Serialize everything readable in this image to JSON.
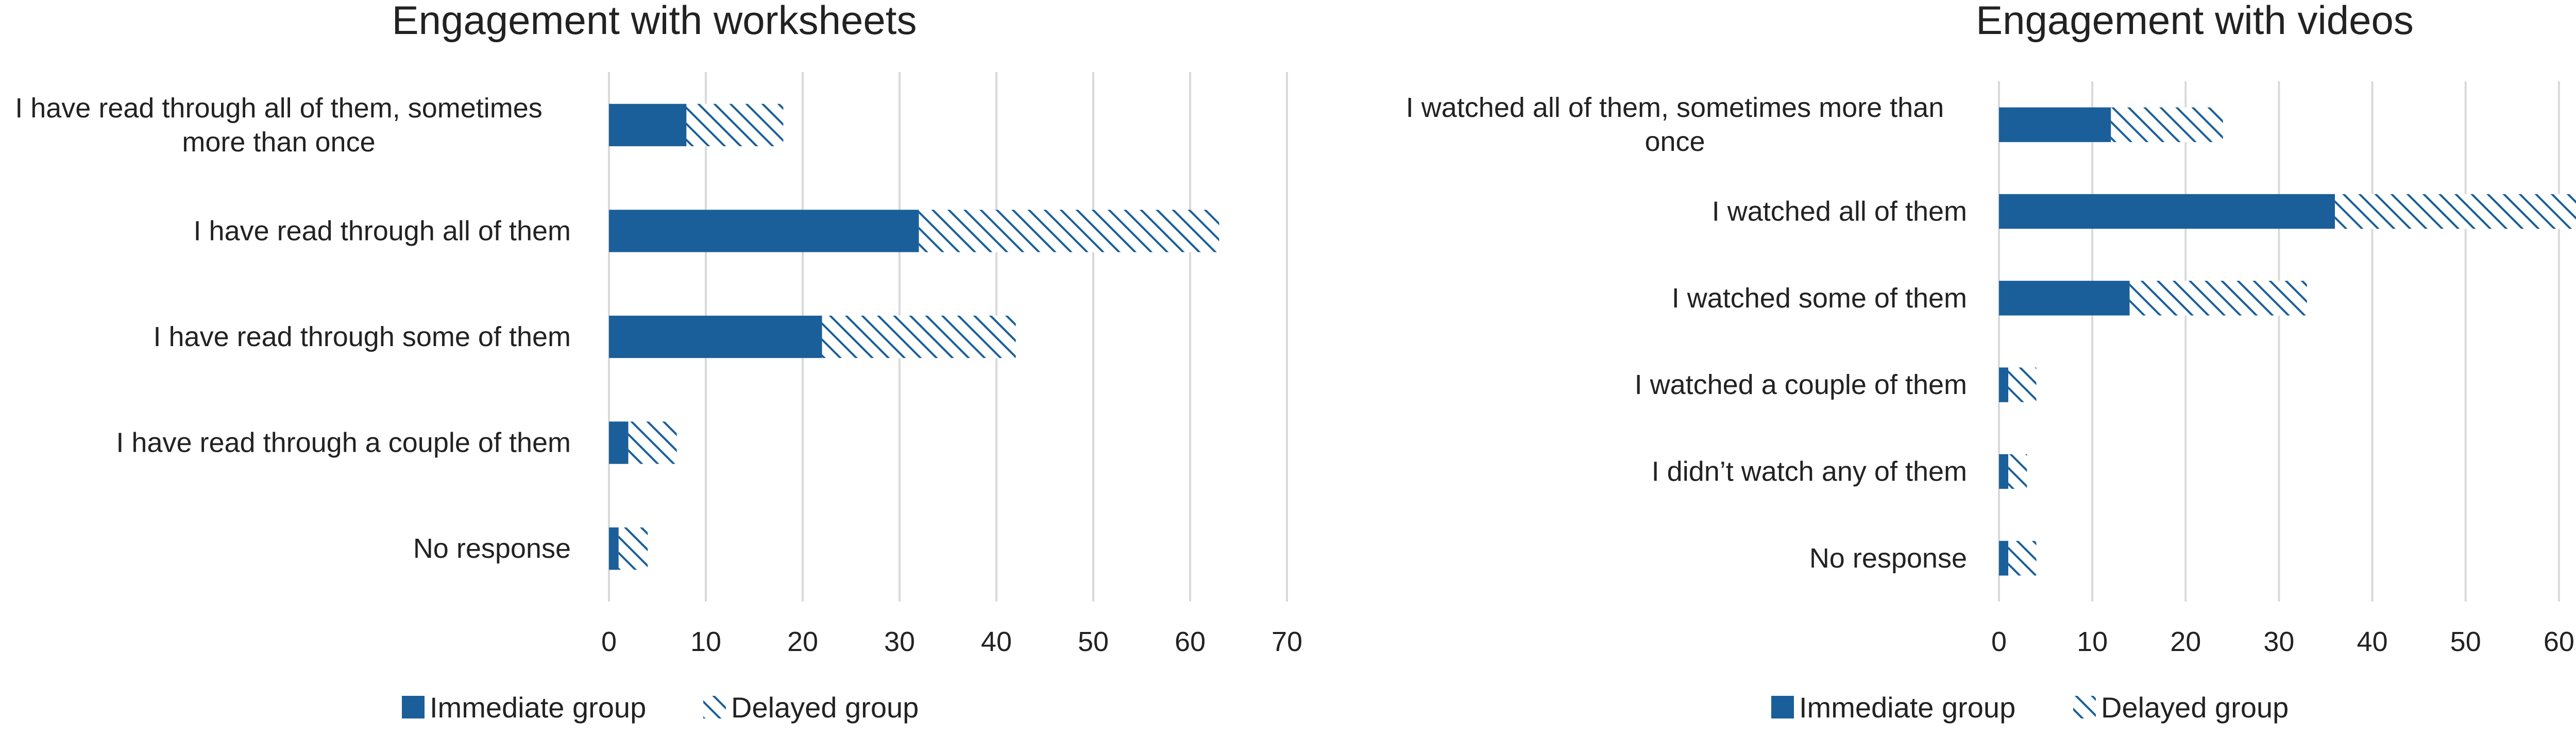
{
  "chart_data": [
    {
      "type": "bar",
      "orientation": "horizontal",
      "stacked": true,
      "title": "Engagement with worksheets",
      "categories": [
        "I have read through all of them, sometimes more than once",
        "I have read through all of them",
        "I have read through some of them",
        "I have read through a couple of them",
        "No response"
      ],
      "series": [
        {
          "name": "Immediate group",
          "values": [
            8,
            32,
            22,
            2,
            1
          ]
        },
        {
          "name": "Delayed group",
          "values": [
            10,
            31,
            20,
            5,
            3
          ]
        }
      ],
      "xlim": [
        0,
        70
      ],
      "xticks": [
        0,
        10,
        20,
        30,
        40,
        50,
        60,
        70
      ],
      "grid": true,
      "legend": "bottom"
    },
    {
      "type": "bar",
      "orientation": "horizontal",
      "stacked": true,
      "title": "Engagement with videos",
      "categories": [
        "I watched all of them, sometimes more than once",
        "I watched all of them",
        "I watched some of them",
        "I watched a couple of them",
        "I didn't watch any of them",
        "No response"
      ],
      "series": [
        {
          "name": "Immediate group",
          "values": [
            12,
            36,
            14,
            1,
            1,
            1
          ]
        },
        {
          "name": "Delayed group",
          "values": [
            12,
            30,
            19,
            3,
            2,
            3
          ]
        }
      ],
      "xlim": [
        0,
        70
      ],
      "xticks": [
        0,
        10,
        20,
        30,
        40,
        50,
        60,
        70
      ],
      "grid": true,
      "legend": "bottom"
    }
  ],
  "colors": {
    "immediate": "#1a5f99",
    "delayed_hatch": "#1a5f99",
    "gridline": "#d9d9d9",
    "text": "#222222"
  }
}
